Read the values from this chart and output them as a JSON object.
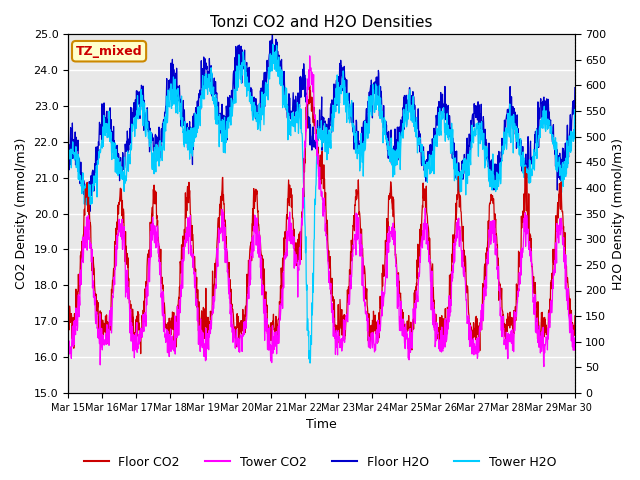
{
  "title": "Tonzi CO2 and H2O Densities",
  "xlabel": "Time",
  "ylabel_left": "CO2 Density (mmol/m3)",
  "ylabel_right": "H2O Density (mmol/m3)",
  "annotation": "TZ_mixed",
  "ylim_left": [
    15.0,
    25.0
  ],
  "ylim_right": [
    0,
    700
  ],
  "yticks_left": [
    15.0,
    16.0,
    17.0,
    18.0,
    19.0,
    20.0,
    21.0,
    22.0,
    23.0,
    24.0,
    25.0
  ],
  "yticks_right": [
    0,
    50,
    100,
    150,
    200,
    250,
    300,
    350,
    400,
    450,
    500,
    550,
    600,
    650,
    700
  ],
  "xtick_labels": [
    "Mar 15",
    "Mar 16",
    "Mar 17",
    "Mar 18",
    "Mar 19",
    "Mar 20",
    "Mar 21",
    "Mar 22",
    "Mar 23",
    "Mar 24",
    "Mar 25",
    "Mar 26",
    "Mar 27",
    "Mar 28",
    "Mar 29",
    "Mar 30"
  ],
  "colors": {
    "floor_co2": "#cc0000",
    "tower_co2": "#ff00ff",
    "floor_h2o": "#0000cc",
    "tower_h2o": "#00ccff"
  },
  "legend_labels": [
    "Floor CO2",
    "Tower CO2",
    "Floor H2O",
    "Tower H2O"
  ],
  "background_color": "#e8e8e8",
  "annotation_facecolor": "#ffffcc",
  "annotation_edgecolor": "#cc8800",
  "annotation_textcolor": "#cc0000",
  "grid_color": "#ffffff",
  "n_points": 1440,
  "days": 15
}
